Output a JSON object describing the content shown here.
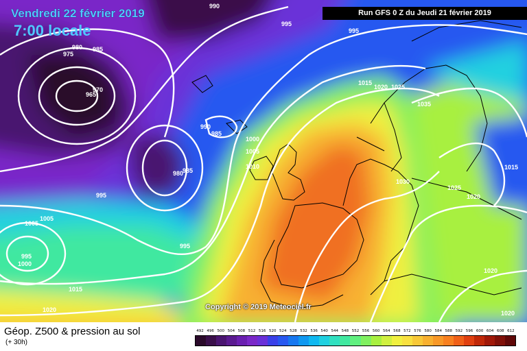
{
  "header": {
    "date": "Vendredi 22 février 2019",
    "time": "7:00 locale",
    "run": "Run GFS 0 Z du Jeudi 21 février 2019"
  },
  "footer": {
    "product": "Géop. Z500 & pression au sol",
    "lead": "(+ 30h)",
    "copyright": "Copyright © 2019 Meteociel.fr"
  },
  "legend": {
    "values": [
      "492",
      "496",
      "500",
      "504",
      "508",
      "512",
      "516",
      "520",
      "524",
      "528",
      "532",
      "536",
      "540",
      "544",
      "548",
      "552",
      "556",
      "560",
      "564",
      "568",
      "572",
      "576",
      "580",
      "584",
      "588",
      "592",
      "596",
      "600",
      "604",
      "608",
      "612"
    ],
    "colors": [
      "#2a0a2a",
      "#3a0f4a",
      "#4a1570",
      "#5a1a90",
      "#6a1fb0",
      "#7a28c8",
      "#6a30d8",
      "#3a40e8",
      "#2858f0",
      "#1878f0",
      "#1098f0",
      "#10b8f0",
      "#20d0e0",
      "#30e0c0",
      "#40e8a0",
      "#60f080",
      "#80f060",
      "#a8f040",
      "#d0f040",
      "#f0f040",
      "#f8e040",
      "#f8c838",
      "#f8b030",
      "#f89828",
      "#f88020",
      "#f06018",
      "#e04010",
      "#c02808",
      "#a01808",
      "#801008",
      "#600808"
    ]
  },
  "isobars": [
    "990",
    "985",
    "980",
    "975",
    "970",
    "965",
    "995",
    "1015",
    "1020",
    "1025",
    "1035",
    "985",
    "990",
    "985",
    "1000",
    "1005",
    "1010",
    "980",
    "985",
    "995",
    "1005",
    "1005",
    "995",
    "1000",
    "995",
    "1030",
    "1025",
    "1020",
    "1015",
    "1020",
    "1015",
    "1020",
    "1020"
  ],
  "map_colors": {
    "deep_low": "#2a0a2a",
    "violet": "#7a28c8",
    "blue": "#2858f0",
    "cyan": "#20d0e0",
    "green": "#80f060",
    "yellow": "#f0f040",
    "orange": "#f8a030",
    "red_orange": "#f07020",
    "isobar": "#ffffff",
    "coastline": "#000000"
  }
}
